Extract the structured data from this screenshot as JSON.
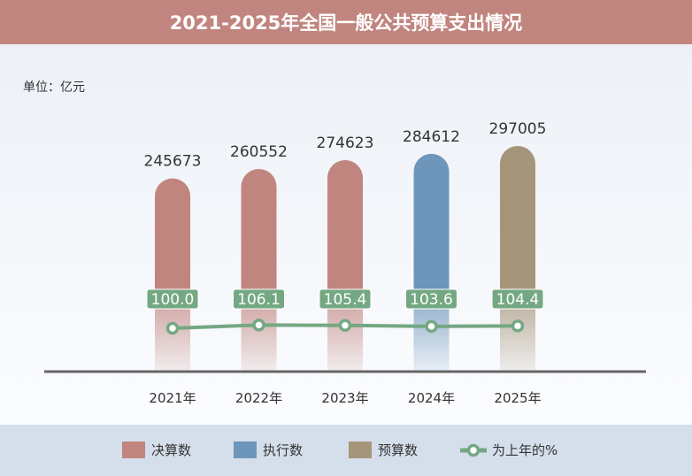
{
  "title": "2021-2025年全国一般公共预算支出情况",
  "unit": "单位：亿元",
  "chart_data": {
    "type": "bar",
    "title": "2021-2025年全国一般公共预算支出情况",
    "categories": [
      "2021年",
      "2022年",
      "2023年",
      "2024年",
      "2025年"
    ],
    "values": [
      245673,
      260552,
      274623,
      284612,
      297005
    ],
    "value_labels": [
      "245673",
      "260552",
      "274623",
      "284612",
      "297005"
    ],
    "bar_types": [
      "决算数",
      "决算数",
      "决算数",
      "执行数",
      "预算数"
    ],
    "ylim": [
      -60000,
      310000
    ],
    "line_series": {
      "name": "为上年的%",
      "values": [
        100.0,
        106.1,
        105.4,
        103.6,
        104.4
      ],
      "labels": [
        "100.0",
        "106.1",
        "105.4",
        "103.6",
        "104.4"
      ]
    },
    "legend": [
      {
        "label": "决算数",
        "color": "#c1857f",
        "kind": "box"
      },
      {
        "label": "执行数",
        "color": "#6e95ba",
        "kind": "box"
      },
      {
        "label": "预算数",
        "color": "#a5957a",
        "kind": "box"
      },
      {
        "label": "为上年的%",
        "color": "#74a883",
        "kind": "line"
      }
    ],
    "legend_position": "bottom",
    "grid": false
  }
}
